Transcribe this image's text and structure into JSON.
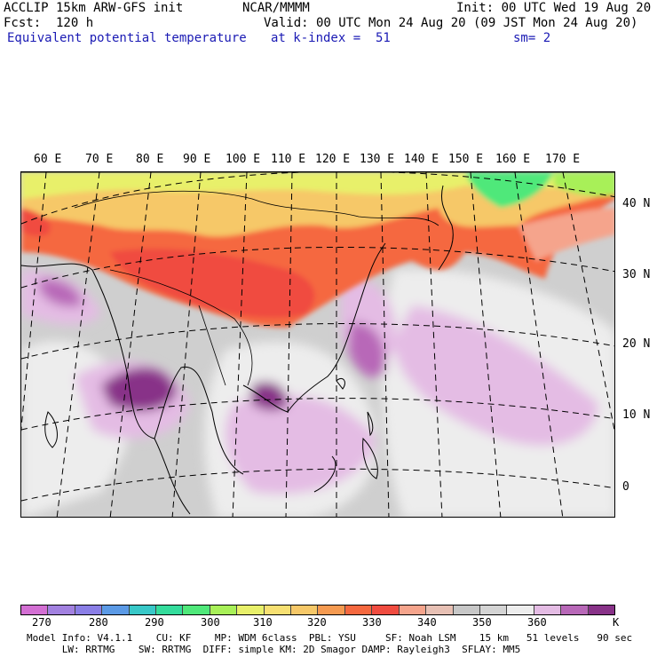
{
  "header": {
    "model": "ACCLIP 15km ARW-GFS init",
    "center": "NCAR/MMMM",
    "init": "Init: 00 UTC Wed 19 Aug 20",
    "fcst": "Fcst:  120 h",
    "valid": "Valid: 00 UTC Mon 24 Aug 20 (09 JST Mon 24 Aug 20)",
    "field": "Equivalent potential temperature",
    "level": "at k-index =  51",
    "smoothing": "sm= 2"
  },
  "lon_labels": [
    "60 E",
    "70 E",
    "80 E",
    "90 E",
    "100 E",
    "110 E",
    "120 E",
    "130 E",
    "140 E",
    "150 E",
    "160 E",
    "170 E"
  ],
  "lat_labels": [
    "40 N",
    "30 N",
    "20 N",
    "10 N",
    "0"
  ],
  "legend": {
    "ticks": [
      "270",
      "280",
      "290",
      "300",
      "310",
      "320",
      "330",
      "340",
      "350",
      "360"
    ],
    "unit": "K",
    "colors": [
      "#d36fd3",
      "#a281e0",
      "#8a7ee6",
      "#5b9ae6",
      "#38c8c8",
      "#34dc9c",
      "#4fe87a",
      "#a8f058",
      "#e8f06a",
      "#f7e072",
      "#f6c868",
      "#f59a50",
      "#f5683f",
      "#f04c40",
      "#f5a48c",
      "#e7c0b4",
      "#c7c7c7",
      "#d4d4d4",
      "#ededed",
      "#e4bce4",
      "#b868b8",
      "#883288"
    ]
  },
  "footer": {
    "line1": "Model Info: V4.1.1    CU: KF    MP: WDM 6class  PBL: YSU     SF: Noah LSM    15 km   51 levels   90 sec",
    "line2": "      LW: RRTMG    SW: RRTMG  DIFF: simple KM: 2D Smagor DAMP: Rayleigh3  SFLAY: MM5"
  }
}
